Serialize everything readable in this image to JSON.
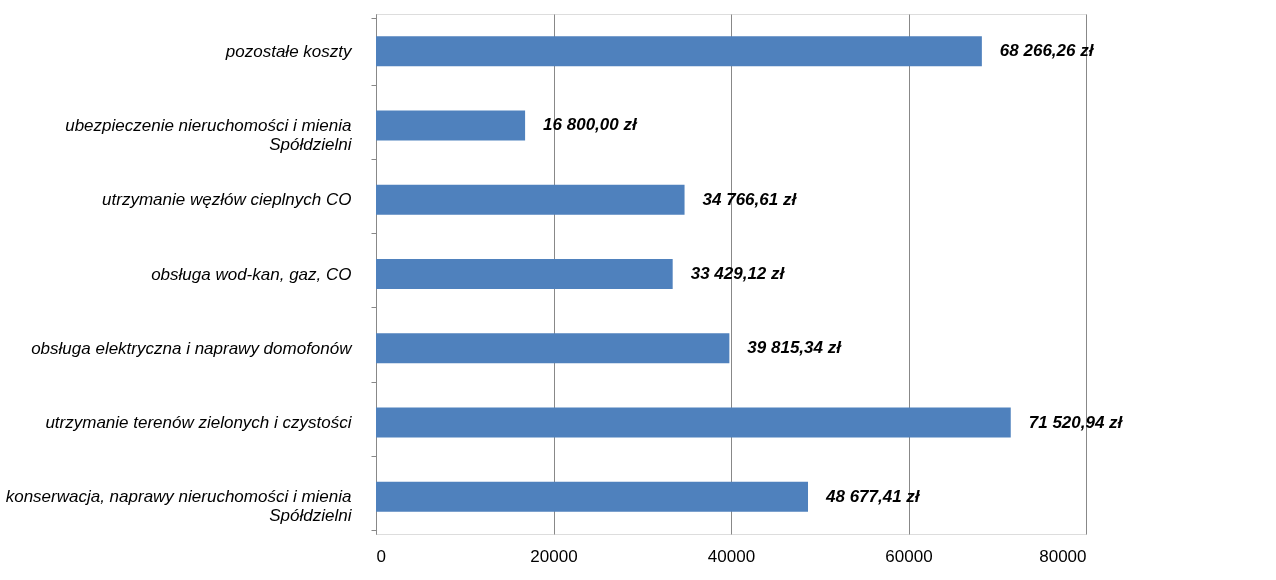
{
  "chart_data": {
    "type": "bar",
    "orientation": "horizontal",
    "categories": [
      "pozostałe koszty",
      "ubezpieczenie nieruchomości i mienia\nSpółdzielni",
      "utrzymanie węzłów cieplnych CO",
      "obsługa wod-kan, gaz, CO",
      "obsługa elektryczna i naprawy domofonów",
      "utrzymanie terenów zielonych i czystości",
      "konserwacja, naprawy nieruchomości i mienia\nSpółdzielni"
    ],
    "values": [
      68266.26,
      16800.0,
      34766.61,
      33429.12,
      39815.34,
      71520.94,
      48677.41
    ],
    "value_labels": [
      "68 266,26 zł",
      "16 800,00 zł",
      "34 766,61 zł",
      "33 429,12 zł",
      "39 815,34 zł",
      "71 520,94 zł",
      "48 677,41 zł"
    ],
    "color": "#4f81bd",
    "xlim": [
      0,
      80000
    ],
    "xticks": [
      0,
      20000,
      40000,
      60000,
      80000
    ],
    "grid": "x"
  }
}
